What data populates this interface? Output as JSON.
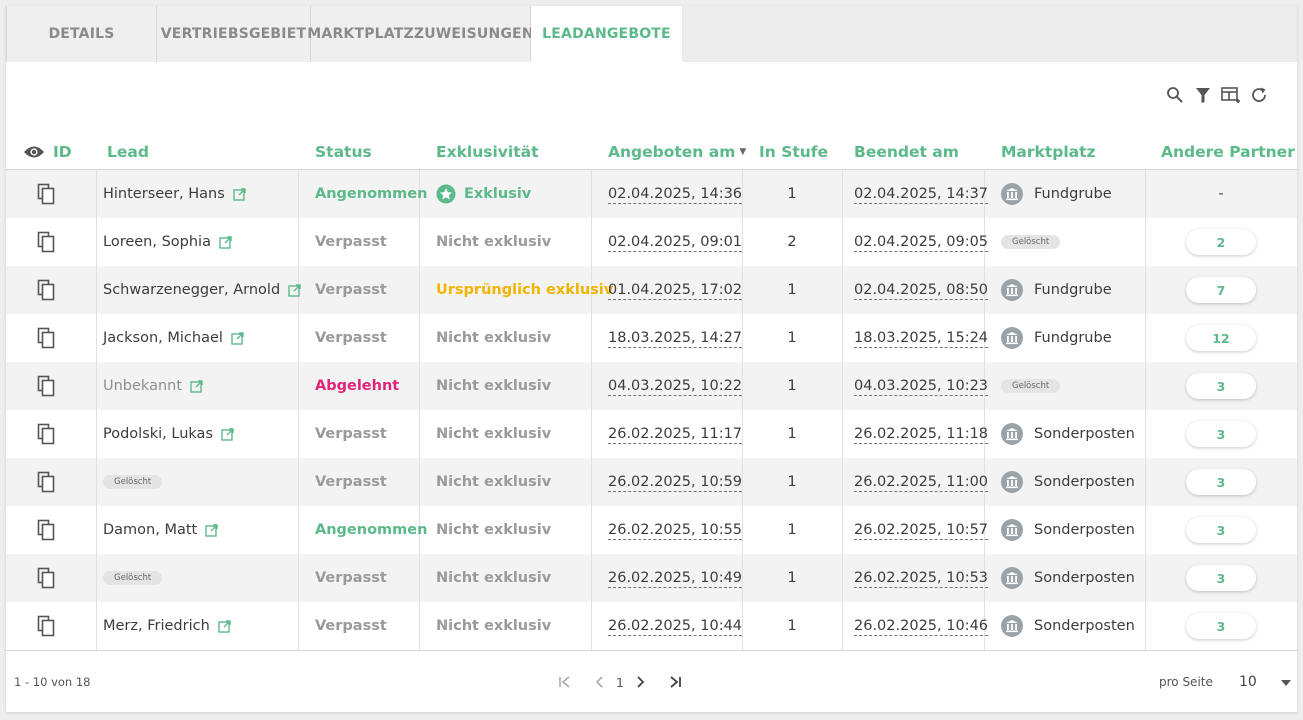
{
  "tabs": [
    {
      "label": "DETAILS",
      "active": false
    },
    {
      "label": "VERTRIEBSGEBIET",
      "active": false
    },
    {
      "label": "MARKTPLATZZUWEISUNGEN",
      "active": false
    },
    {
      "label": "LEADANGEBOTE",
      "active": true
    }
  ],
  "toolbar": {
    "icons": [
      "search-icon",
      "filter-icon",
      "columns-icon",
      "refresh-icon"
    ]
  },
  "columns": {
    "id": "ID",
    "lead": "Lead",
    "status": "Status",
    "exclusivity": "Exklusivität",
    "offered_at": "Angeboten am",
    "stage": "In Stufe",
    "ended_at": "Beendet am",
    "marketplace": "Marktplatz",
    "other_partners": "Andere Partner"
  },
  "sort": {
    "column": "offered_at",
    "direction": "desc"
  },
  "rows": [
    {
      "lead": "Hinterseer, Hans",
      "lead_deleted": false,
      "lead_muted": false,
      "status": "Angenommen",
      "status_type": "green",
      "exclusivity": "Exklusiv",
      "ex_type": "exclusive",
      "offered": "02.04.2025, 14:36",
      "stage": "1",
      "ended": "02.04.2025, 14:37",
      "marketplace": "Fundgrube",
      "mp_deleted": false,
      "partners": "-",
      "partners_pill": false
    },
    {
      "lead": "Loreen, Sophia",
      "lead_deleted": false,
      "lead_muted": false,
      "status": "Verpasst",
      "status_type": "gray",
      "exclusivity": "Nicht exklusiv",
      "ex_type": "gray",
      "offered": "02.04.2025, 09:01",
      "stage": "2",
      "ended": "02.04.2025, 09:05",
      "marketplace": "Gelöscht",
      "mp_deleted": true,
      "partners": "2",
      "partners_pill": true
    },
    {
      "lead": "Schwarzenegger, Arnold",
      "lead_deleted": false,
      "lead_muted": false,
      "status": "Verpasst",
      "status_type": "gray",
      "exclusivity": "Ursprünglich exklusiv",
      "ex_type": "orange",
      "offered": "01.04.2025, 17:02",
      "stage": "1",
      "ended": "02.04.2025, 08:50",
      "marketplace": "Fundgrube",
      "mp_deleted": false,
      "partners": "7",
      "partners_pill": true
    },
    {
      "lead": "Jackson, Michael",
      "lead_deleted": false,
      "lead_muted": false,
      "status": "Verpasst",
      "status_type": "gray",
      "exclusivity": "Nicht exklusiv",
      "ex_type": "gray",
      "offered": "18.03.2025, 14:27",
      "stage": "1",
      "ended": "18.03.2025, 15:24",
      "marketplace": "Fundgrube",
      "mp_deleted": false,
      "partners": "12",
      "partners_pill": true
    },
    {
      "lead": "Unbekannt",
      "lead_deleted": false,
      "lead_muted": true,
      "status": "Abgelehnt",
      "status_type": "red",
      "exclusivity": "Nicht exklusiv",
      "ex_type": "gray",
      "offered": "04.03.2025, 10:22",
      "stage": "1",
      "ended": "04.03.2025, 10:23",
      "marketplace": "Gelöscht",
      "mp_deleted": true,
      "partners": "3",
      "partners_pill": true
    },
    {
      "lead": "Podolski, Lukas",
      "lead_deleted": false,
      "lead_muted": false,
      "status": "Verpasst",
      "status_type": "gray",
      "exclusivity": "Nicht exklusiv",
      "ex_type": "gray",
      "offered": "26.02.2025, 11:17",
      "stage": "1",
      "ended": "26.02.2025, 11:18",
      "marketplace": "Sonderposten",
      "mp_deleted": false,
      "partners": "3",
      "partners_pill": true
    },
    {
      "lead": "Gelöscht",
      "lead_deleted": true,
      "lead_muted": false,
      "status": "Verpasst",
      "status_type": "gray",
      "exclusivity": "Nicht exklusiv",
      "ex_type": "gray",
      "offered": "26.02.2025, 10:59",
      "stage": "1",
      "ended": "26.02.2025, 11:00",
      "marketplace": "Sonderposten",
      "mp_deleted": false,
      "partners": "3",
      "partners_pill": true
    },
    {
      "lead": "Damon, Matt",
      "lead_deleted": false,
      "lead_muted": false,
      "status": "Angenommen",
      "status_type": "green",
      "exclusivity": "Nicht exklusiv",
      "ex_type": "gray",
      "offered": "26.02.2025, 10:55",
      "stage": "1",
      "ended": "26.02.2025, 10:57",
      "marketplace": "Sonderposten",
      "mp_deleted": false,
      "partners": "3",
      "partners_pill": true
    },
    {
      "lead": "Gelöscht",
      "lead_deleted": true,
      "lead_muted": false,
      "status": "Verpasst",
      "status_type": "gray",
      "exclusivity": "Nicht exklusiv",
      "ex_type": "gray",
      "offered": "26.02.2025, 10:49",
      "stage": "1",
      "ended": "26.02.2025, 10:53",
      "marketplace": "Sonderposten",
      "mp_deleted": false,
      "partners": "3",
      "partners_pill": true
    },
    {
      "lead": "Merz, Friedrich",
      "lead_deleted": false,
      "lead_muted": false,
      "status": "Verpasst",
      "status_type": "gray",
      "exclusivity": "Nicht exklusiv",
      "ex_type": "gray",
      "offered": "26.02.2025, 10:44",
      "stage": "1",
      "ended": "26.02.2025, 10:46",
      "marketplace": "Sonderposten",
      "mp_deleted": false,
      "partners": "3",
      "partners_pill": true
    }
  ],
  "footer": {
    "range": "1 - 10 von 18",
    "current_page": "1",
    "per_page_label": "pro Seite",
    "per_page_value": "10"
  },
  "colors": {
    "accent": "#5bb98a",
    "rejected": "#e0247a",
    "orig_exclusive": "#f2b400"
  }
}
